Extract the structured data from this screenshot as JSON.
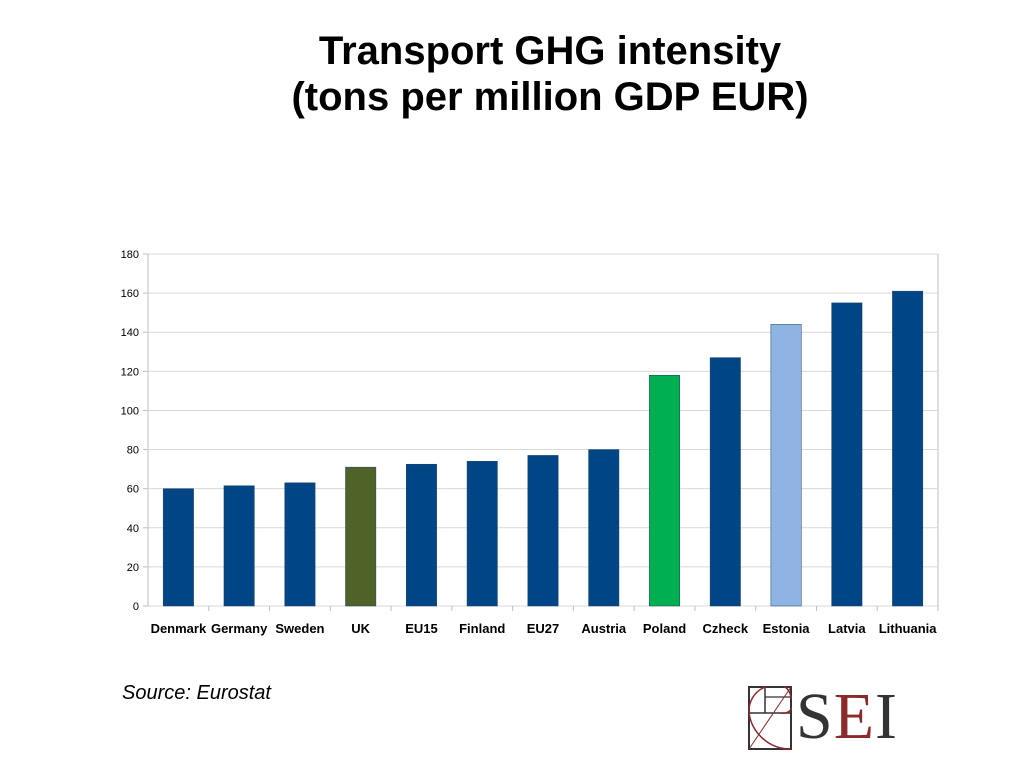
{
  "title": {
    "line1": "Transport GHG intensity",
    "line2": "(tons per million GDP EUR)"
  },
  "source": "Source: Eurostat",
  "logo": {
    "s": "S",
    "e": "E",
    "i": "I",
    "icon": "golden-spiral-icon"
  },
  "colors": {
    "default": "#004586",
    "uk": "#4f6228",
    "poland": "#00b050",
    "estonia": "#8eb4e3",
    "grid": "#d9d9d9",
    "axis": "#bfbfbf"
  },
  "chart_data": {
    "type": "bar",
    "categories": [
      "Denmark",
      "Germany",
      "Sweden",
      "UK",
      "EU15",
      "Finland",
      "EU27",
      "Austria",
      "Poland",
      "Czheck",
      "Estonia",
      "Latvia",
      "Lithuania"
    ],
    "values": [
      60,
      61.5,
      63,
      71,
      72.5,
      74,
      77,
      80,
      118,
      127,
      144,
      155,
      161
    ],
    "bar_colors": [
      "#004586",
      "#004586",
      "#004586",
      "#4f6228",
      "#004586",
      "#004586",
      "#004586",
      "#004586",
      "#00b050",
      "#004586",
      "#8eb4e3",
      "#004586",
      "#004586"
    ],
    "ylim": [
      0,
      180
    ],
    "yticks": [
      0,
      20,
      40,
      60,
      80,
      100,
      120,
      140,
      160,
      180
    ],
    "grid": true,
    "legend": "none"
  }
}
